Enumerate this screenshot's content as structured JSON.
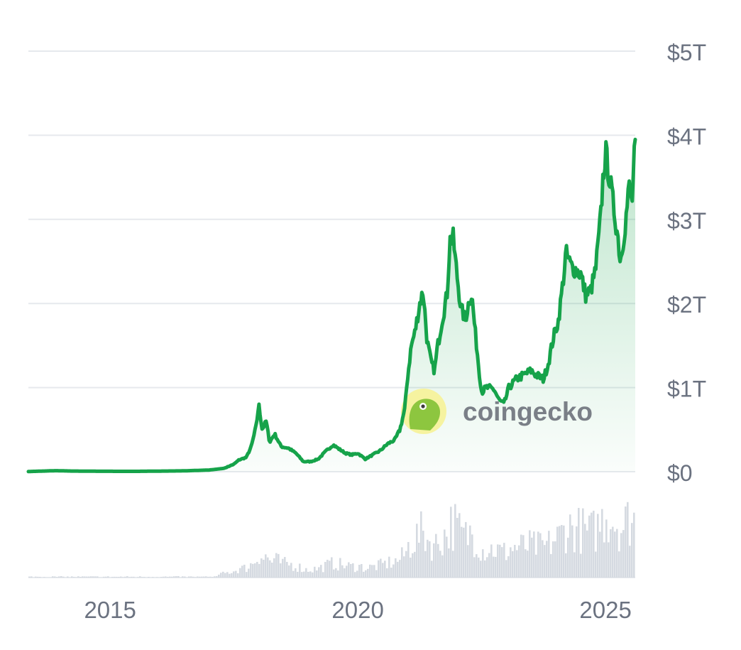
{
  "chart_data": {
    "type": "area",
    "watermark": "coingecko",
    "x_axis": {
      "ticks": [
        {
          "year": 2015,
          "label": "2015"
        },
        {
          "year": 2020,
          "label": "2020"
        },
        {
          "year": 2025,
          "label": "2025"
        }
      ],
      "range": [
        2013.35,
        2025.6
      ]
    },
    "y_axis": {
      "unit": "trillion USD",
      "position": "right",
      "ticks": [
        {
          "value": 0,
          "label": "$0"
        },
        {
          "value": 1,
          "label": "$1T"
        },
        {
          "value": 2,
          "label": "$2T"
        },
        {
          "value": 3,
          "label": "$3T"
        },
        {
          "value": 4,
          "label": "$4T"
        },
        {
          "value": 5,
          "label": "$5T"
        }
      ],
      "range": [
        0,
        5
      ],
      "grid": true
    },
    "colors": {
      "line": "#16a34a",
      "fill_top": "#16a34a",
      "volume": "#d5dae1",
      "grid": "#e6e9ed",
      "axis_text": "#6b7280",
      "watermark_text": "#7a7f87",
      "logo_circle": "#f6f3a0",
      "logo_gecko": "#8dc63f"
    },
    "series": [
      {
        "values": [
          [
            2013.35,
            0.002
          ],
          [
            2013.9,
            0.012
          ],
          [
            2014.2,
            0.008
          ],
          [
            2014.8,
            0.005
          ],
          [
            2015.5,
            0.004
          ],
          [
            2016.5,
            0.01
          ],
          [
            2017.0,
            0.02
          ],
          [
            2017.3,
            0.04
          ],
          [
            2017.5,
            0.09
          ],
          [
            2017.6,
            0.14
          ],
          [
            2017.75,
            0.17
          ],
          [
            2017.85,
            0.3
          ],
          [
            2017.95,
            0.55
          ],
          [
            2018.0,
            0.8
          ],
          [
            2018.07,
            0.5
          ],
          [
            2018.15,
            0.6
          ],
          [
            2018.22,
            0.35
          ],
          [
            2018.32,
            0.45
          ],
          [
            2018.45,
            0.3
          ],
          [
            2018.6,
            0.28
          ],
          [
            2018.75,
            0.22
          ],
          [
            2018.9,
            0.12
          ],
          [
            2019.05,
            0.12
          ],
          [
            2019.2,
            0.15
          ],
          [
            2019.35,
            0.24
          ],
          [
            2019.5,
            0.32
          ],
          [
            2019.62,
            0.27
          ],
          [
            2019.75,
            0.22
          ],
          [
            2019.88,
            0.2
          ],
          [
            2020.0,
            0.22
          ],
          [
            2020.15,
            0.15
          ],
          [
            2020.3,
            0.2
          ],
          [
            2020.45,
            0.25
          ],
          [
            2020.6,
            0.33
          ],
          [
            2020.75,
            0.38
          ],
          [
            2020.85,
            0.5
          ],
          [
            2020.95,
            0.75
          ],
          [
            2021.0,
            1.1
          ],
          [
            2021.08,
            1.5
          ],
          [
            2021.15,
            1.65
          ],
          [
            2021.25,
            2.0
          ],
          [
            2021.32,
            2.15
          ],
          [
            2021.4,
            1.55
          ],
          [
            2021.48,
            1.3
          ],
          [
            2021.55,
            1.2
          ],
          [
            2021.6,
            1.45
          ],
          [
            2021.7,
            1.8
          ],
          [
            2021.8,
            2.1
          ],
          [
            2021.86,
            2.75
          ],
          [
            2021.92,
            2.8
          ],
          [
            2022.0,
            2.35
          ],
          [
            2022.08,
            1.95
          ],
          [
            2022.17,
            1.8
          ],
          [
            2022.25,
            2.05
          ],
          [
            2022.3,
            2.1
          ],
          [
            2022.38,
            1.6
          ],
          [
            2022.45,
            1.2
          ],
          [
            2022.5,
            0.95
          ],
          [
            2022.6,
            1.0
          ],
          [
            2022.75,
            0.98
          ],
          [
            2022.85,
            0.85
          ],
          [
            2022.95,
            0.8
          ],
          [
            2023.05,
            1.0
          ],
          [
            2023.2,
            1.1
          ],
          [
            2023.35,
            1.15
          ],
          [
            2023.5,
            1.2
          ],
          [
            2023.6,
            1.15
          ],
          [
            2023.75,
            1.1
          ],
          [
            2023.85,
            1.3
          ],
          [
            2023.95,
            1.6
          ],
          [
            2024.05,
            1.8
          ],
          [
            2024.15,
            2.3
          ],
          [
            2024.2,
            2.6
          ],
          [
            2024.3,
            2.45
          ],
          [
            2024.4,
            2.4
          ],
          [
            2024.5,
            2.35
          ],
          [
            2024.6,
            2.1
          ],
          [
            2024.7,
            2.15
          ],
          [
            2024.8,
            2.4
          ],
          [
            2024.9,
            3.0
          ],
          [
            2024.95,
            3.5
          ],
          [
            2025.0,
            3.8
          ],
          [
            2025.08,
            3.5
          ],
          [
            2025.15,
            3.2
          ],
          [
            2025.25,
            2.8
          ],
          [
            2025.3,
            2.5
          ],
          [
            2025.4,
            2.95
          ],
          [
            2025.48,
            3.4
          ],
          [
            2025.53,
            3.15
          ],
          [
            2025.6,
            3.95
          ]
        ]
      }
    ]
  }
}
